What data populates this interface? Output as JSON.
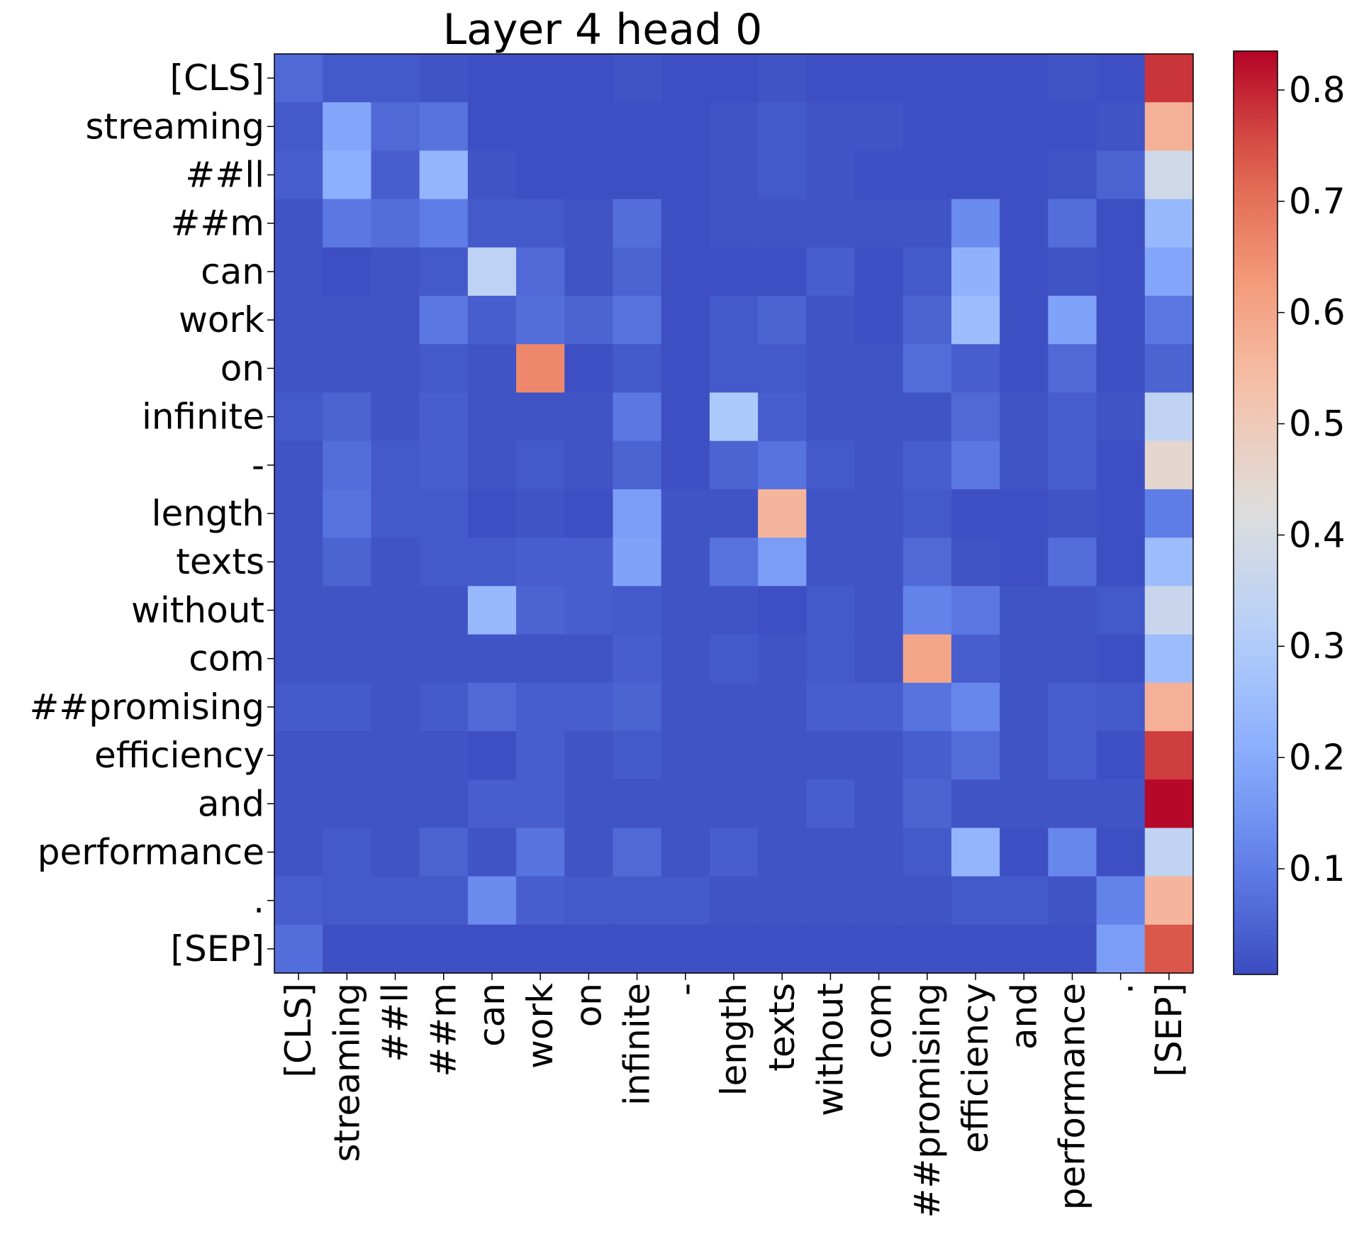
{
  "chart_data": {
    "type": "heatmap",
    "title": "Layer 4 head 0",
    "xlabel": "",
    "ylabel": "",
    "x_labels": [
      "[CLS]",
      "streaming",
      "##ll",
      "##m",
      "can",
      "work",
      "on",
      "infinite",
      "-",
      "length",
      "texts",
      "without",
      "com",
      "##promising",
      "efficiency",
      "and",
      "performance",
      ".",
      "[SEP]"
    ],
    "y_labels": [
      "[CLS]",
      "streaming",
      "##ll",
      "##m",
      "can",
      "work",
      "on",
      "infinite",
      "-",
      "length",
      "texts",
      "without",
      "com",
      "##promising",
      "efficiency",
      "and",
      "performance",
      ".",
      "[SEP]"
    ],
    "values": [
      [
        0.06,
        0.03,
        0.03,
        0.02,
        0.01,
        0.01,
        0.01,
        0.02,
        0.01,
        0.01,
        0.02,
        0.01,
        0.01,
        0.01,
        0.01,
        0.01,
        0.02,
        0.01,
        0.78
      ],
      [
        0.03,
        0.19,
        0.06,
        0.08,
        0.01,
        0.01,
        0.01,
        0.01,
        0.01,
        0.02,
        0.03,
        0.02,
        0.02,
        0.01,
        0.01,
        0.01,
        0.01,
        0.02,
        0.57
      ],
      [
        0.04,
        0.21,
        0.04,
        0.23,
        0.02,
        0.01,
        0.01,
        0.01,
        0.01,
        0.02,
        0.03,
        0.02,
        0.01,
        0.01,
        0.01,
        0.01,
        0.02,
        0.05,
        0.38
      ],
      [
        0.02,
        0.09,
        0.07,
        0.1,
        0.03,
        0.03,
        0.02,
        0.07,
        0.01,
        0.02,
        0.02,
        0.02,
        0.02,
        0.02,
        0.13,
        0.01,
        0.07,
        0.01,
        0.24
      ],
      [
        0.02,
        0.01,
        0.02,
        0.03,
        0.33,
        0.06,
        0.02,
        0.05,
        0.01,
        0.01,
        0.01,
        0.04,
        0.01,
        0.03,
        0.22,
        0.01,
        0.02,
        0.01,
        0.19
      ],
      [
        0.02,
        0.02,
        0.02,
        0.09,
        0.04,
        0.07,
        0.05,
        0.08,
        0.01,
        0.03,
        0.05,
        0.02,
        0.01,
        0.05,
        0.25,
        0.01,
        0.18,
        0.01,
        0.09
      ],
      [
        0.02,
        0.02,
        0.02,
        0.03,
        0.02,
        0.66,
        0.01,
        0.03,
        0.01,
        0.03,
        0.03,
        0.02,
        0.02,
        0.07,
        0.04,
        0.01,
        0.06,
        0.01,
        0.05
      ],
      [
        0.03,
        0.05,
        0.02,
        0.04,
        0.02,
        0.02,
        0.02,
        0.09,
        0.01,
        0.29,
        0.04,
        0.02,
        0.02,
        0.02,
        0.06,
        0.02,
        0.04,
        0.02,
        0.34
      ],
      [
        0.02,
        0.07,
        0.03,
        0.04,
        0.02,
        0.03,
        0.02,
        0.05,
        0.01,
        0.05,
        0.08,
        0.03,
        0.02,
        0.04,
        0.09,
        0.02,
        0.04,
        0.01,
        0.45
      ],
      [
        0.02,
        0.08,
        0.03,
        0.03,
        0.01,
        0.02,
        0.01,
        0.17,
        0.02,
        0.02,
        0.56,
        0.02,
        0.02,
        0.03,
        0.01,
        0.01,
        0.02,
        0.01,
        0.1
      ],
      [
        0.02,
        0.05,
        0.02,
        0.03,
        0.03,
        0.04,
        0.04,
        0.18,
        0.02,
        0.08,
        0.17,
        0.02,
        0.02,
        0.06,
        0.02,
        0.01,
        0.07,
        0.01,
        0.25
      ],
      [
        0.02,
        0.02,
        0.02,
        0.02,
        0.24,
        0.05,
        0.04,
        0.03,
        0.02,
        0.02,
        0.01,
        0.03,
        0.02,
        0.11,
        0.09,
        0.02,
        0.02,
        0.03,
        0.36
      ],
      [
        0.02,
        0.02,
        0.02,
        0.02,
        0.02,
        0.02,
        0.02,
        0.04,
        0.02,
        0.03,
        0.02,
        0.03,
        0.02,
        0.6,
        0.04,
        0.02,
        0.02,
        0.01,
        0.25
      ],
      [
        0.03,
        0.03,
        0.02,
        0.03,
        0.06,
        0.04,
        0.04,
        0.05,
        0.02,
        0.02,
        0.02,
        0.04,
        0.04,
        0.08,
        0.12,
        0.02,
        0.04,
        0.03,
        0.57
      ],
      [
        0.02,
        0.02,
        0.02,
        0.02,
        0.01,
        0.04,
        0.02,
        0.03,
        0.02,
        0.02,
        0.02,
        0.02,
        0.02,
        0.04,
        0.07,
        0.02,
        0.04,
        0.01,
        0.77
      ],
      [
        0.02,
        0.02,
        0.02,
        0.02,
        0.04,
        0.04,
        0.02,
        0.02,
        0.02,
        0.02,
        0.02,
        0.04,
        0.02,
        0.05,
        0.02,
        0.02,
        0.02,
        0.02,
        0.83
      ],
      [
        0.02,
        0.03,
        0.02,
        0.05,
        0.02,
        0.08,
        0.02,
        0.06,
        0.02,
        0.04,
        0.02,
        0.02,
        0.02,
        0.03,
        0.23,
        0.01,
        0.12,
        0.01,
        0.34
      ],
      [
        0.04,
        0.03,
        0.03,
        0.03,
        0.13,
        0.04,
        0.03,
        0.03,
        0.03,
        0.02,
        0.02,
        0.02,
        0.02,
        0.02,
        0.03,
        0.03,
        0.02,
        0.11,
        0.56
      ],
      [
        0.07,
        0.01,
        0.01,
        0.01,
        0.01,
        0.01,
        0.01,
        0.01,
        0.01,
        0.01,
        0.01,
        0.01,
        0.01,
        0.01,
        0.01,
        0.01,
        0.01,
        0.17,
        0.74
      ]
    ],
    "colormap": "coolwarm",
    "vmin": 0.005,
    "vmax": 0.835,
    "colorbar": {
      "ticks": [
        0.1,
        0.2,
        0.3,
        0.4,
        0.5,
        0.6,
        0.7,
        0.8
      ],
      "tick_labels": [
        "0.1",
        "0.2",
        "0.3",
        "0.4",
        "0.5",
        "0.6",
        "0.7",
        "0.8"
      ],
      "position": "right"
    },
    "grid": false,
    "legend": "none"
  }
}
